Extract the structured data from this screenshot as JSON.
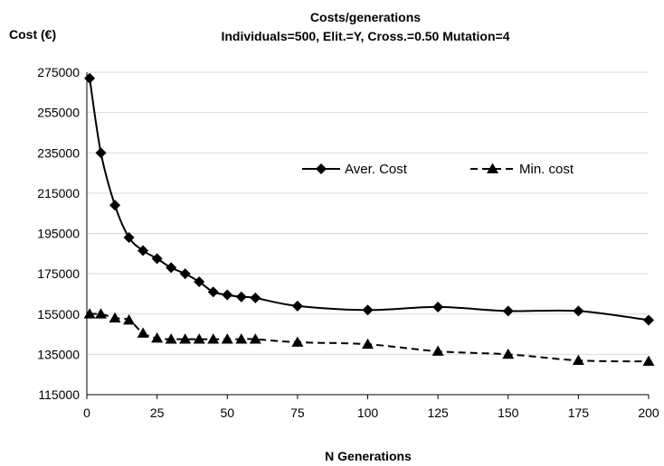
{
  "chart_data": {
    "type": "line",
    "title": "Costs/generations",
    "subtitle": "Individuals=500, Elit.=Y, Cross.=0.50 Mutation=4",
    "ylabel": "Cost (€)",
    "xlabel": "N Generations",
    "xlim": [
      0,
      200
    ],
    "ylim": [
      115000,
      275000
    ],
    "x_ticks": [
      0,
      25,
      50,
      75,
      100,
      125,
      150,
      175,
      200
    ],
    "y_ticks": [
      115000,
      135000,
      155000,
      175000,
      195000,
      215000,
      235000,
      255000,
      275000
    ],
    "grid": "horizontal",
    "legend_position": "top-right",
    "series": [
      {
        "name": "Aver. Cost",
        "color": "#000000",
        "line_style": "solid",
        "marker": "diamond",
        "points": [
          [
            1,
            272000
          ],
          [
            5,
            235000
          ],
          [
            10,
            209000
          ],
          [
            15,
            193000
          ],
          [
            20,
            186500
          ],
          [
            25,
            182500
          ],
          [
            30,
            178000
          ],
          [
            35,
            175000
          ],
          [
            40,
            171000
          ],
          [
            45,
            166000
          ],
          [
            50,
            164500
          ],
          [
            55,
            163500
          ],
          [
            60,
            163000
          ],
          [
            75,
            159000
          ],
          [
            100,
            157000
          ],
          [
            125,
            158500
          ],
          [
            150,
            156500
          ],
          [
            175,
            156500
          ],
          [
            200,
            152000
          ]
        ]
      },
      {
        "name": "Min. cost",
        "color": "#000000",
        "line_style": "dashed",
        "marker": "triangle",
        "points": [
          [
            1,
            155000
          ],
          [
            5,
            155000
          ],
          [
            10,
            153000
          ],
          [
            15,
            152000
          ],
          [
            20,
            145500
          ],
          [
            25,
            143000
          ],
          [
            30,
            142500
          ],
          [
            35,
            142500
          ],
          [
            40,
            142500
          ],
          [
            45,
            142500
          ],
          [
            50,
            142500
          ],
          [
            55,
            142500
          ],
          [
            60,
            142500
          ],
          [
            75,
            141000
          ],
          [
            100,
            140000
          ],
          [
            125,
            136500
          ],
          [
            150,
            135000
          ],
          [
            175,
            132000
          ],
          [
            200,
            131500
          ]
        ]
      }
    ]
  }
}
